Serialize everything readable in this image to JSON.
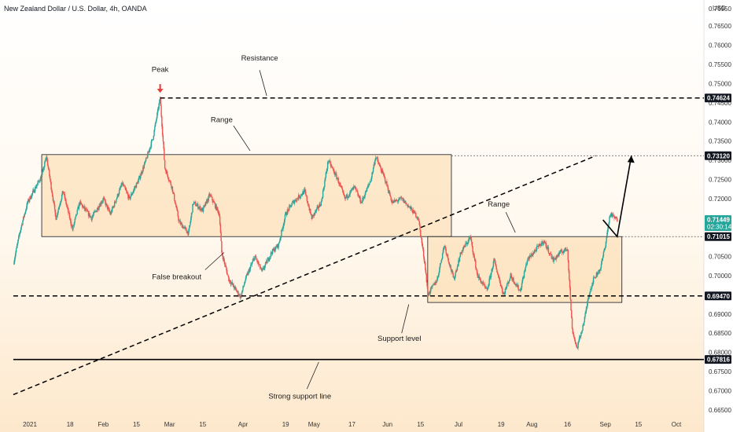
{
  "chart_data": {
    "type": "candlestick",
    "title": "New Zealand Dollar / U.S. Dollar, 4h, OANDA",
    "currency": "USD",
    "ylim": [
      0.665,
      0.77
    ],
    "y_ticks": [
      "0.76950",
      "0.76500",
      "0.76000",
      "0.75500",
      "0.75000",
      "0.74500",
      "0.74000",
      "0.73500",
      "0.73000",
      "0.72500",
      "0.72000",
      "0.71500",
      "0.71000",
      "0.70500",
      "0.70000",
      "0.69500",
      "0.69000",
      "0.68500",
      "0.68000",
      "0.67500",
      "0.67000",
      "0.66500"
    ],
    "x_ticks": [
      "2021",
      "18",
      "Feb",
      "15",
      "Mar",
      "15",
      "Apr",
      "19",
      "May",
      "17",
      "Jun",
      "15",
      "Jul",
      "19",
      "Aug",
      "16",
      "Sep",
      "15",
      "Oct"
    ],
    "x_tick_dates": [
      "2021-01-01",
      "2021-01-18",
      "2021-02-01",
      "2021-02-15",
      "2021-03-01",
      "2021-03-15",
      "2021-04-01",
      "2021-04-19",
      "2021-05-01",
      "2021-05-17",
      "2021-06-01",
      "2021-06-15",
      "2021-07-01",
      "2021-07-19",
      "2021-08-01",
      "2021-08-16",
      "2021-09-01",
      "2021-09-15",
      "2021-10-01"
    ],
    "price_path": [
      [
        "2020-12-25",
        0.703
      ],
      [
        "2020-12-28",
        0.712
      ],
      [
        "2020-12-31",
        0.719
      ],
      [
        "2021-01-06",
        0.726
      ],
      [
        "2021-01-08",
        0.731
      ],
      [
        "2021-01-12",
        0.715
      ],
      [
        "2021-01-15",
        0.722
      ],
      [
        "2021-01-19",
        0.712
      ],
      [
        "2021-01-22",
        0.719
      ],
      [
        "2021-01-27",
        0.715
      ],
      [
        "2021-02-01",
        0.72
      ],
      [
        "2021-02-04",
        0.716
      ],
      [
        "2021-02-09",
        0.724
      ],
      [
        "2021-02-12",
        0.72
      ],
      [
        "2021-02-16",
        0.725
      ],
      [
        "2021-02-19",
        0.73
      ],
      [
        "2021-02-22",
        0.736
      ],
      [
        "2021-02-25",
        0.7462
      ],
      [
        "2021-02-27",
        0.728
      ],
      [
        "2021-03-02",
        0.723
      ],
      [
        "2021-03-05",
        0.714
      ],
      [
        "2021-03-09",
        0.711
      ],
      [
        "2021-03-11",
        0.719
      ],
      [
        "2021-03-15",
        0.717
      ],
      [
        "2021-03-18",
        0.721
      ],
      [
        "2021-03-22",
        0.716
      ],
      [
        "2021-03-23",
        0.706
      ],
      [
        "2021-03-26",
        0.699
      ],
      [
        "2021-03-31",
        0.6944
      ],
      [
        "2021-04-02",
        0.699
      ],
      [
        "2021-04-06",
        0.705
      ],
      [
        "2021-04-09",
        0.701
      ],
      [
        "2021-04-13",
        0.706
      ],
      [
        "2021-04-16",
        0.708
      ],
      [
        "2021-04-19",
        0.716
      ],
      [
        "2021-04-22",
        0.719
      ],
      [
        "2021-04-27",
        0.722
      ],
      [
        "2021-04-30",
        0.715
      ],
      [
        "2021-05-04",
        0.719
      ],
      [
        "2021-05-07",
        0.73
      ],
      [
        "2021-05-11",
        0.725
      ],
      [
        "2021-05-14",
        0.72
      ],
      [
        "2021-05-18",
        0.723
      ],
      [
        "2021-05-21",
        0.719
      ],
      [
        "2021-05-25",
        0.725
      ],
      [
        "2021-05-27",
        0.731
      ],
      [
        "2021-05-31",
        0.725
      ],
      [
        "2021-06-03",
        0.719
      ],
      [
        "2021-06-07",
        0.72
      ],
      [
        "2021-06-10",
        0.718
      ],
      [
        "2021-06-14",
        0.715
      ],
      [
        "2021-06-17",
        0.702
      ],
      [
        "2021-06-18",
        0.695
      ],
      [
        "2021-06-22",
        0.699
      ],
      [
        "2021-06-25",
        0.708
      ],
      [
        "2021-06-29",
        0.699
      ],
      [
        "2021-07-02",
        0.706
      ],
      [
        "2021-07-06",
        0.71
      ],
      [
        "2021-07-09",
        0.7
      ],
      [
        "2021-07-13",
        0.696
      ],
      [
        "2021-07-16",
        0.704
      ],
      [
        "2021-07-20",
        0.695
      ],
      [
        "2021-07-23",
        0.7
      ],
      [
        "2021-07-27",
        0.696
      ],
      [
        "2021-07-30",
        0.704
      ],
      [
        "2021-08-03",
        0.707
      ],
      [
        "2021-08-06",
        0.709
      ],
      [
        "2021-08-10",
        0.704
      ],
      [
        "2021-08-13",
        0.706
      ],
      [
        "2021-08-16",
        0.707
      ],
      [
        "2021-08-18",
        0.686
      ],
      [
        "2021-08-20",
        0.681
      ],
      [
        "2021-08-23",
        0.688
      ],
      [
        "2021-08-25",
        0.695
      ],
      [
        "2021-08-27",
        0.699
      ],
      [
        "2021-08-30",
        0.702
      ],
      [
        "2021-09-01",
        0.708
      ],
      [
        "2021-09-03",
        0.716
      ],
      [
        "2021-09-06",
        0.7145
      ]
    ],
    "price_tags": [
      {
        "value": 0.74624,
        "label": "0.74624",
        "color": "#131722"
      },
      {
        "value": 0.7312,
        "label": "0.73120",
        "color": "#131722"
      },
      {
        "value": 0.71449,
        "label": "0.71449",
        "sub": "02:30:14",
        "color": "#26a69a"
      },
      {
        "value": 0.71015,
        "label": "0.71015",
        "color": "#131722"
      },
      {
        "value": 0.6947,
        "label": "0.69470",
        "color": "#131722"
      },
      {
        "value": 0.67816,
        "label": "0.67816",
        "color": "#131722"
      }
    ],
    "levels": [
      {
        "name": "Resistance",
        "value": 0.74624,
        "style": "dashed",
        "from": "2021-02-25"
      },
      {
        "name": "Support level",
        "value": 0.6947,
        "style": "dashed",
        "from": "2020-12-25"
      },
      {
        "name": "Strong support line",
        "value": 0.67816,
        "style": "solid",
        "from": "2020-12-25"
      },
      {
        "name": "target",
        "value": 0.7312,
        "style": "dotted",
        "from": "2021-06-28"
      },
      {
        "name": "range-top",
        "value": 0.71015,
        "style": "dotted",
        "from": "2021-08-31"
      }
    ],
    "trendline": {
      "start": [
        "2020-12-25",
        0.669
      ],
      "end": [
        "2021-08-28",
        0.7312
      ]
    },
    "boxes": [
      {
        "name": "range-1",
        "x0": "2021-01-06",
        "x1": "2021-06-28",
        "y0": 0.71015,
        "y1": 0.7315
      },
      {
        "name": "range-2",
        "x0": "2021-06-18",
        "x1": "2021-09-08",
        "y0": 0.693,
        "y1": 0.71015
      }
    ],
    "projection": [
      [
        "2021-08-31",
        0.7145
      ],
      [
        "2021-09-06",
        0.71015
      ],
      [
        "2021-09-12",
        0.7312
      ]
    ],
    "annotations": [
      {
        "text": "Peak",
        "at": [
          "2021-02-25",
          0.753
        ]
      },
      {
        "text": "Resistance",
        "at": [
          "2021-04-08",
          0.756
        ]
      },
      {
        "text": "Range",
        "at": [
          "2021-03-23",
          0.74
        ]
      },
      {
        "text": "Range",
        "at": [
          "2021-07-18",
          0.718
        ]
      },
      {
        "text": "False breakout",
        "at": [
          "2021-03-04",
          0.699
        ]
      },
      {
        "text": "Support level",
        "at": [
          "2021-06-06",
          0.683
        ]
      },
      {
        "text": "Strong support line",
        "at": [
          "2021-04-25",
          0.668
        ]
      }
    ]
  }
}
